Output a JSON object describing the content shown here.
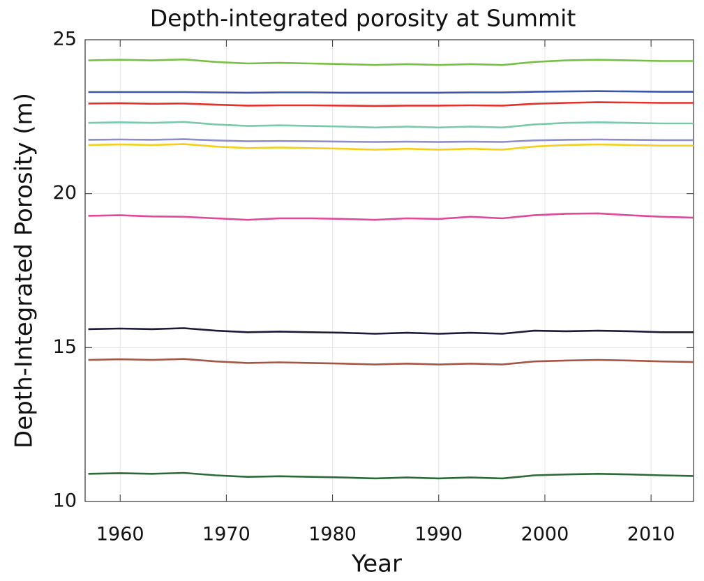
{
  "chart_data": {
    "type": "line",
    "title": "Depth-integrated porosity at Summit",
    "x_label": "Year",
    "y_label": "Depth-Integrated Porosity (m)",
    "x": [
      1957,
      1960,
      1963,
      1966,
      1969,
      1972,
      1975,
      1978,
      1981,
      1984,
      1987,
      1990,
      1993,
      1996,
      1999,
      2002,
      2005,
      2008,
      2011,
      2014
    ],
    "xlim": [
      1956.7,
      2014
    ],
    "ylim": [
      10,
      25
    ],
    "xticks": [
      1960,
      1970,
      1980,
      1990,
      2000,
      2010
    ],
    "yticks": [
      10,
      15,
      20,
      25
    ],
    "grid": true,
    "series": [
      {
        "color": "#77c043",
        "values": [
          24.33,
          24.35,
          24.33,
          24.36,
          24.28,
          24.23,
          24.25,
          24.23,
          24.21,
          24.18,
          24.21,
          24.18,
          24.21,
          24.18,
          24.28,
          24.33,
          24.35,
          24.33,
          24.31,
          24.31
        ]
      },
      {
        "color": "#3b54a5",
        "values": [
          23.3,
          23.3,
          23.3,
          23.3,
          23.29,
          23.28,
          23.29,
          23.29,
          23.28,
          23.28,
          23.28,
          23.28,
          23.29,
          23.29,
          23.31,
          23.32,
          23.33,
          23.32,
          23.31,
          23.31
        ]
      },
      {
        "color": "#e3302a",
        "values": [
          22.93,
          22.94,
          22.92,
          22.93,
          22.89,
          22.86,
          22.87,
          22.87,
          22.86,
          22.85,
          22.86,
          22.86,
          22.87,
          22.86,
          22.92,
          22.95,
          22.97,
          22.96,
          22.95,
          22.95
        ]
      },
      {
        "color": "#78caa9",
        "values": [
          22.3,
          22.32,
          22.3,
          22.33,
          22.25,
          22.2,
          22.22,
          22.2,
          22.18,
          22.15,
          22.18,
          22.15,
          22.18,
          22.15,
          22.25,
          22.3,
          22.32,
          22.3,
          22.28,
          22.28
        ]
      },
      {
        "color": "#8e8dc6",
        "values": [
          21.75,
          21.76,
          21.75,
          21.77,
          21.73,
          21.7,
          21.71,
          21.7,
          21.69,
          21.68,
          21.69,
          21.68,
          21.69,
          21.68,
          21.73,
          21.75,
          21.76,
          21.75,
          21.74,
          21.74
        ]
      },
      {
        "color": "#f4cf1c",
        "values": [
          21.58,
          21.6,
          21.58,
          21.61,
          21.53,
          21.48,
          21.5,
          21.48,
          21.46,
          21.43,
          21.46,
          21.43,
          21.46,
          21.43,
          21.53,
          21.58,
          21.6,
          21.58,
          21.56,
          21.56
        ]
      },
      {
        "color": "#e0489b",
        "values": [
          19.28,
          19.3,
          19.26,
          19.25,
          19.2,
          19.15,
          19.2,
          19.2,
          19.18,
          19.15,
          19.2,
          19.18,
          19.25,
          19.2,
          19.3,
          19.35,
          19.36,
          19.3,
          19.25,
          19.22
        ]
      },
      {
        "color": "#1b1a38",
        "values": [
          15.6,
          15.62,
          15.6,
          15.63,
          15.55,
          15.5,
          15.52,
          15.5,
          15.48,
          15.45,
          15.48,
          15.45,
          15.48,
          15.45,
          15.55,
          15.53,
          15.55,
          15.53,
          15.5,
          15.5
        ]
      },
      {
        "color": "#a65545",
        "values": [
          14.6,
          14.62,
          14.6,
          14.63,
          14.55,
          14.5,
          14.52,
          14.5,
          14.48,
          14.45,
          14.48,
          14.45,
          14.48,
          14.45,
          14.55,
          14.58,
          14.6,
          14.58,
          14.55,
          14.53
        ]
      },
      {
        "color": "#2b6a36",
        "values": [
          10.9,
          10.92,
          10.9,
          10.93,
          10.85,
          10.8,
          10.82,
          10.8,
          10.78,
          10.75,
          10.78,
          10.75,
          10.78,
          10.75,
          10.85,
          10.88,
          10.9,
          10.88,
          10.85,
          10.83
        ]
      }
    ]
  }
}
